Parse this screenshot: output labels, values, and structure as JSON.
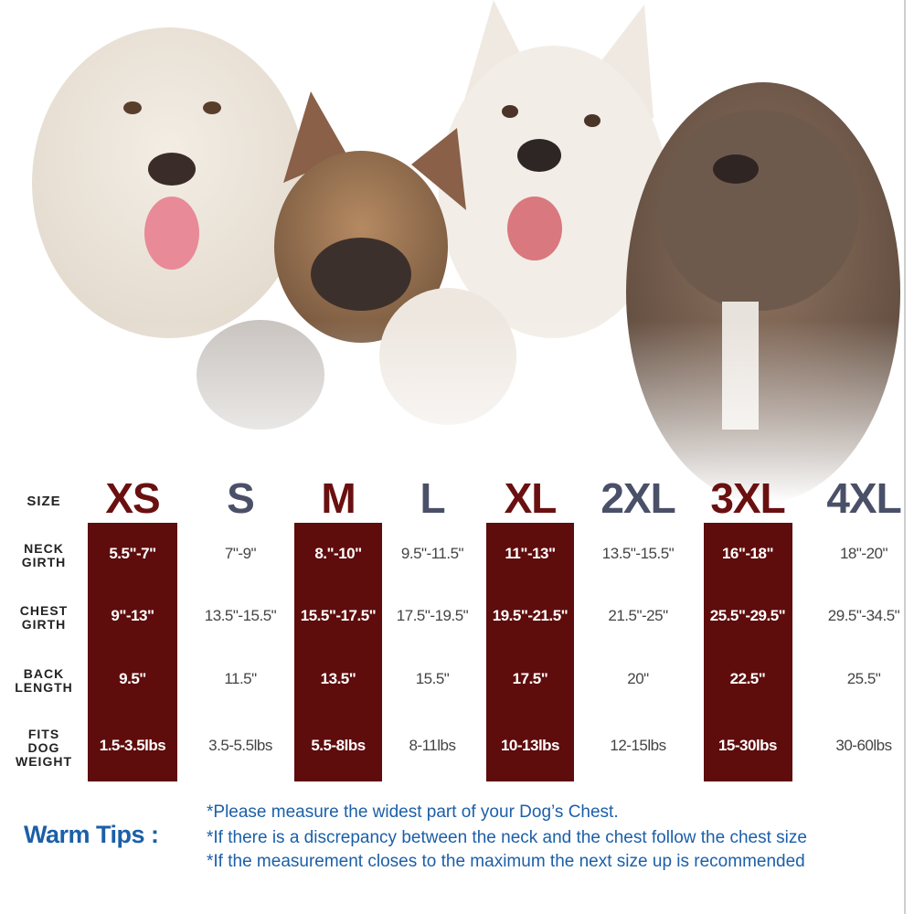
{
  "table": {
    "header_label": [
      "SIZE"
    ],
    "sizes": [
      "XS",
      "S",
      "M",
      "L",
      "XL",
      "2XL",
      "3XL",
      "4XL"
    ],
    "rows": [
      {
        "label": [
          "NECK",
          "GIRTH"
        ],
        "cells": [
          "5.5\"-7\"",
          "7\"-9\"",
          "8.\"-10\"",
          "9.5\"-11.5\"",
          "11\"-13\"",
          "13.5\"-15.5\"",
          "16\"-18\"",
          "18\"-20\""
        ]
      },
      {
        "label": [
          "CHEST",
          "GIRTH"
        ],
        "cells": [
          "9\"-13\"",
          "13.5\"-15.5\"",
          "15.5\"-17.5\"",
          "17.5\"-19.5\"",
          "19.5\"-21.5\"",
          "21.5\"-25\"",
          "25.5\"-29.5\"",
          "29.5\"-34.5\""
        ]
      },
      {
        "label": [
          "BACK",
          "LENGTH"
        ],
        "cells": [
          "9.5\"",
          "11.5\"",
          "13.5\"",
          "15.5\"",
          "17.5\"",
          "20\"",
          "22.5\"",
          "25.5\""
        ]
      },
      {
        "label": [
          "FITS",
          "DOG",
          "WEIGHT"
        ],
        "cells": [
          "1.5-3.5lbs",
          "3.5-5.5lbs",
          "5.5-8lbs",
          "8-11lbs",
          "10-13lbs",
          "12-15lbs",
          "15-30lbs",
          "30-60lbs"
        ]
      }
    ]
  },
  "tips": {
    "title": "Warm Tips :",
    "lines": [
      "*Please measure the widest part of your Dog’s Chest.",
      "*If there is a discrepancy between the neck and the chest  follow the chest size",
      "*If the measurement closes to the maximum the next size up is recommended"
    ]
  }
}
